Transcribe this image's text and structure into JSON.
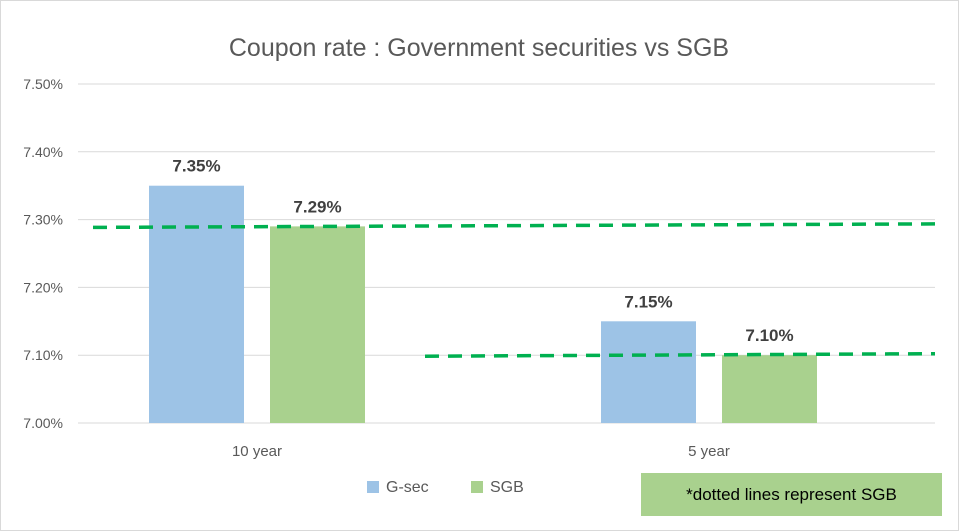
{
  "chart_data": {
    "type": "bar",
    "title": "Coupon rate : Government securities vs SGB",
    "categories": [
      "10 year",
      "5 year"
    ],
    "series": [
      {
        "name": "G-sec",
        "values": [
          7.35,
          7.15
        ],
        "color": "#9dc3e6"
      },
      {
        "name": "SGB",
        "values": [
          7.29,
          7.1
        ],
        "color": "#a9d18e"
      }
    ],
    "data_labels": [
      [
        "7.35%",
        "7.15%"
      ],
      [
        "7.29%",
        "7.10%"
      ]
    ],
    "ylim": [
      7.0,
      7.5
    ],
    "yticks": [
      7.0,
      7.1,
      7.2,
      7.3,
      7.4,
      7.5
    ],
    "ytick_labels": [
      "7.00%",
      "7.10%",
      "7.20%",
      "7.30%",
      "7.40%",
      "7.50%"
    ],
    "xlabel": "",
    "ylabel": "",
    "grid": true,
    "legend": "bottom",
    "reference_lines": [
      {
        "category": "10 year",
        "value": 7.29,
        "style": "dashed",
        "color": "#00b050"
      },
      {
        "category": "5 year",
        "value": 7.1,
        "style": "dashed",
        "color": "#00b050"
      }
    ],
    "note": "*dotted lines represent SGB"
  },
  "colors": {
    "gridline": "#d9d9d9",
    "note_background": "#a9d18e"
  }
}
